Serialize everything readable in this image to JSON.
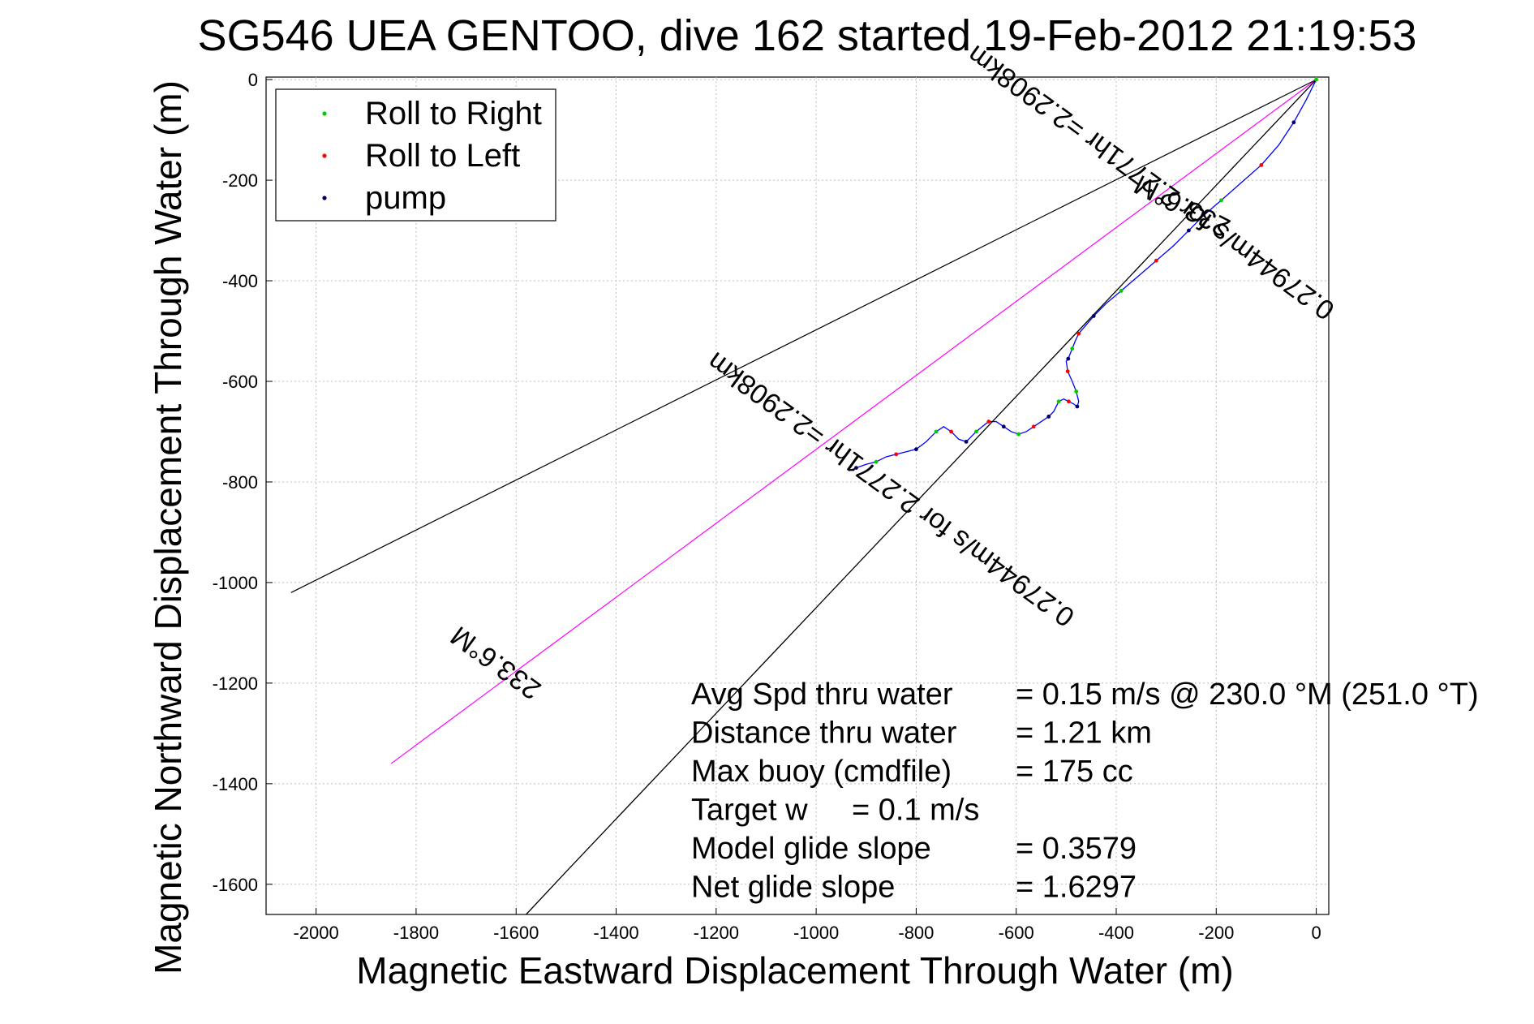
{
  "chart_data": {
    "type": "line",
    "title": "SG546 UEA GENTOO, dive 162 started 19-Feb-2012 21:19:53",
    "xlabel": "Magnetic Eastward Displacement Through Water (m)",
    "ylabel": "Magnetic Northward Displacement Through Water (m)",
    "xlim": [
      -2100,
      25
    ],
    "ylim": [
      -1660,
      5
    ],
    "xticks": [
      -2000,
      -1800,
      -1600,
      -1400,
      -1200,
      -1000,
      -800,
      -600,
      -400,
      -200,
      0
    ],
    "yticks": [
      0,
      -200,
      -400,
      -600,
      -800,
      -1000,
      -1200,
      -1400,
      -1600
    ],
    "grid": true,
    "legend": {
      "placement": "top-left",
      "entries": [
        {
          "label": "Roll to Right",
          "color": "#00cc00"
        },
        {
          "label": "Roll to Left",
          "color": "#ff0000"
        },
        {
          "label": "pump",
          "color": "#000066"
        }
      ]
    },
    "series": [
      {
        "color": "#0000ff",
        "x": [
          0,
          -20,
          -45,
          -75,
          -110,
          -150,
          -190,
          -225,
          -255,
          -285,
          -320,
          -355,
          -390,
          -420,
          -445,
          -462,
          -475,
          -482,
          -488,
          -492,
          -496,
          -500,
          -497,
          -488,
          -480,
          -475,
          -478,
          -485,
          -495,
          -505,
          -515,
          -525,
          -535,
          -550,
          -565,
          -580,
          -595,
          -610,
          -625,
          -640,
          -655,
          -668,
          -680,
          -690,
          -700,
          -715,
          -730,
          -745,
          -760,
          -780,
          -800,
          -820,
          -840,
          -860,
          -880,
          -900,
          -920,
          -935
        ],
        "y": [
          0,
          -40,
          -85,
          -130,
          -170,
          -205,
          -240,
          -270,
          -300,
          -330,
          -360,
          -390,
          -420,
          -445,
          -470,
          -490,
          -505,
          -520,
          -535,
          -545,
          -555,
          -560,
          -580,
          -600,
          -620,
          -640,
          -650,
          -645,
          -640,
          -635,
          -640,
          -660,
          -670,
          -680,
          -690,
          -700,
          -705,
          -700,
          -690,
          -680,
          -680,
          -690,
          -700,
          -710,
          -720,
          -715,
          -700,
          -690,
          -700,
          -720,
          -735,
          -740,
          -745,
          -750,
          -760,
          -765,
          -772,
          -778
        ]
      },
      {
        "color": "#000000",
        "x": [
          0,
          -100,
          -200,
          -300,
          -400,
          -500,
          -600,
          -700,
          -800,
          -900,
          -1000,
          -1100,
          -1200,
          -1300,
          -1400,
          -1500,
          -1580
        ],
        "y": [
          0,
          -105,
          -210,
          -315,
          -420,
          -525,
          -630,
          -735,
          -840,
          -945,
          -1050,
          -1155,
          -1260,
          -1365,
          -1470,
          -1575,
          -1660
        ]
      }
    ],
    "reference_lines": [
      {
        "color": "#000000",
        "x": [
          0,
          -2050
        ],
        "y": [
          0,
          -1020
        ]
      },
      {
        "color": "#ff00ff",
        "x": [
          0,
          -1850
        ],
        "y": [
          0,
          -1360
        ]
      }
    ],
    "line_labels": [
      {
        "text": "233.6°M",
        "x": -1630,
        "y": -1145,
        "angle": 36
      },
      {
        "text": "0.27944m/s for 2.2771hr =2.2908km",
        "x": -840,
        "y": -800,
        "angle": 36
      },
      {
        "text": "233.6°M",
        "x": -260,
        "y": -235,
        "angle": 27
      },
      {
        "text": "0.27944m/s for 2.2771hr =2.2908km",
        "x": -320,
        "y": -190,
        "angle": 36
      }
    ],
    "annotations": [
      {
        "label": "Avg Spd thru water",
        "value": "=  0.15 m/s @ 230.0 °M (251.0 °T)"
      },
      {
        "label": "Distance thru water",
        "value": "=  1.21 km"
      },
      {
        "label": "Max buoy (cmdfile)",
        "value": "= 175 cc"
      },
      {
        "label": "Target w",
        "value": "= 0.1 m/s"
      },
      {
        "label": "Model glide slope",
        "value": "= 0.3579"
      },
      {
        "label": "Net glide slope",
        "value": "= 1.6297"
      }
    ]
  }
}
